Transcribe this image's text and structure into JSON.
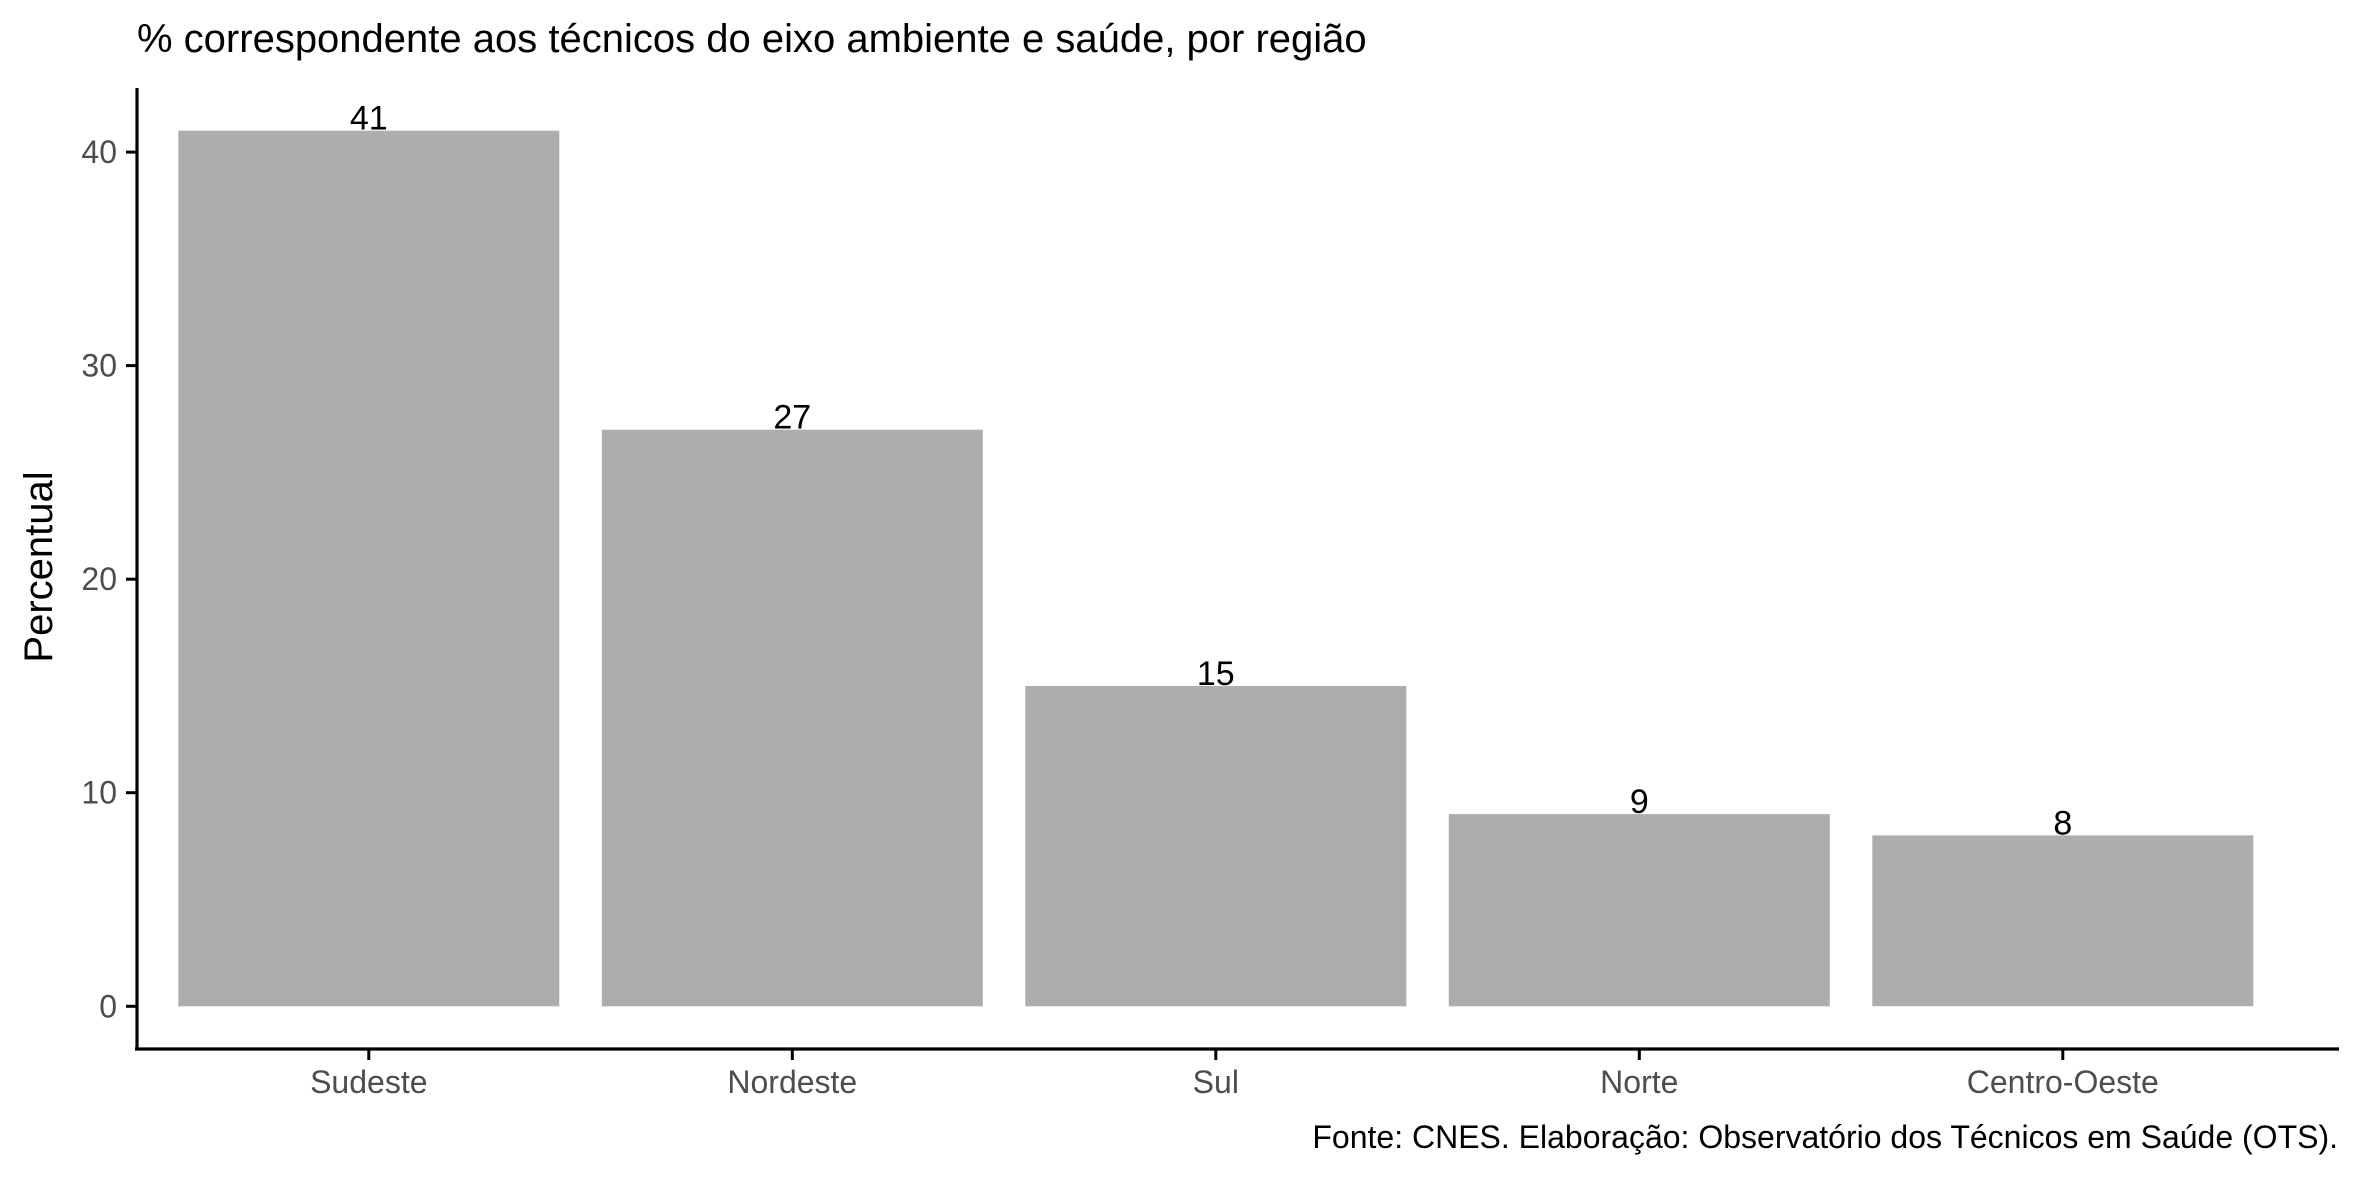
{
  "chart_data": {
    "type": "bar",
    "title": "% correspondente aos técnicos do eixo ambiente e saúde, por região",
    "xlabel": "",
    "ylabel": "Percentual",
    "categories": [
      "Sudeste",
      "Nordeste",
      "Sul",
      "Norte",
      "Centro-Oeste"
    ],
    "values": [
      41,
      27,
      15,
      9,
      8
    ],
    "value_labels": [
      "41",
      "27",
      "15",
      "9",
      "8"
    ],
    "yticks": [
      0,
      10,
      20,
      30,
      40
    ],
    "ytick_labels": [
      "0",
      "10",
      "20",
      "30",
      "40"
    ],
    "ylim": [
      -2,
      43
    ],
    "grid": false,
    "legend": "none",
    "caption": "Fonte: CNES. Elaboração: Observatório dos Técnicos em Saúde (OTS).",
    "colors": {
      "bar": "#adadad",
      "axis": "#000000",
      "tick_label": "#4d4d4d",
      "text": "#000000",
      "background": "#ffffff"
    }
  }
}
